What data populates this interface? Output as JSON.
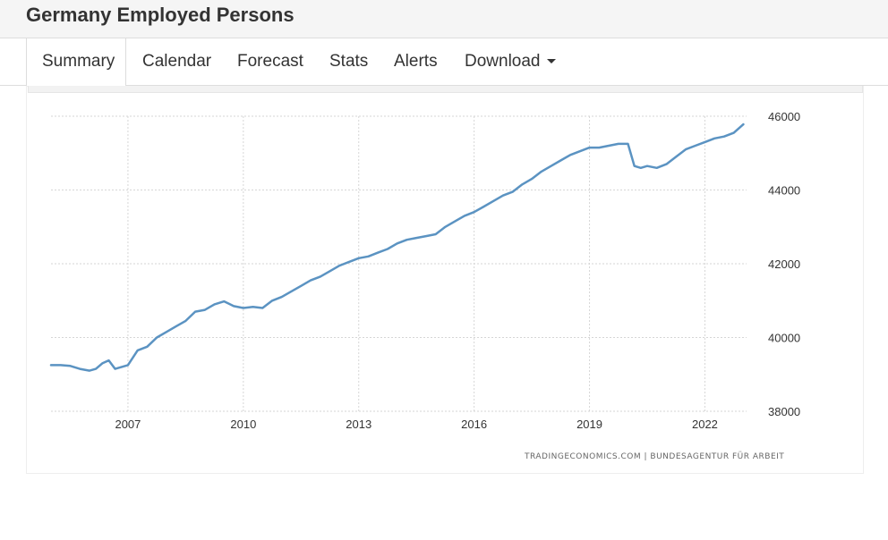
{
  "page": {
    "title": "Germany Employed Persons"
  },
  "tabs": [
    {
      "label": "Summary",
      "active": true
    },
    {
      "label": "Calendar"
    },
    {
      "label": "Forecast"
    },
    {
      "label": "Stats"
    },
    {
      "label": "Alerts"
    },
    {
      "label": "Download",
      "has_dropdown": true,
      "icon": "caret-down-icon"
    }
  ],
  "source": {
    "site": "TRADINGECONOMICS.COM",
    "separator": "|",
    "agency": "BUNDESAGENTUR FÜR ARBEIT"
  },
  "chart_data": {
    "type": "line",
    "title": "",
    "xlabel": "",
    "ylabel": "",
    "series_color": "#5b93c2",
    "grid": true,
    "y_axis_side": "right",
    "ylim": [
      38000,
      46000
    ],
    "xlim": [
      "2005-01",
      "2023-02"
    ],
    "yticks": [
      38000,
      40000,
      42000,
      44000,
      46000
    ],
    "xticks": [
      "2007",
      "2010",
      "2013",
      "2016",
      "2019",
      "2022"
    ],
    "series": [
      {
        "x": [
          "2005-01",
          "2005-04",
          "2005-07",
          "2005-10",
          "2006-01",
          "2006-03",
          "2006-05",
          "2006-07",
          "2006-09",
          "2007-01",
          "2007-04",
          "2007-07",
          "2007-10",
          "2008-01",
          "2008-04",
          "2008-07",
          "2008-10",
          "2009-01",
          "2009-04",
          "2009-07",
          "2009-10",
          "2010-01",
          "2010-04",
          "2010-07",
          "2010-10",
          "2011-01",
          "2011-04",
          "2011-07",
          "2011-10",
          "2012-01",
          "2012-04",
          "2012-07",
          "2012-10",
          "2013-01",
          "2013-04",
          "2013-07",
          "2013-10",
          "2014-01",
          "2014-04",
          "2014-07",
          "2014-10",
          "2015-01",
          "2015-04",
          "2015-07",
          "2015-10",
          "2016-01",
          "2016-04",
          "2016-07",
          "2016-10",
          "2017-01",
          "2017-04",
          "2017-07",
          "2017-10",
          "2018-01",
          "2018-04",
          "2018-07",
          "2018-10",
          "2019-01",
          "2019-04",
          "2019-07",
          "2019-10",
          "2020-01",
          "2020-03",
          "2020-05",
          "2020-07",
          "2020-10",
          "2021-01",
          "2021-04",
          "2021-07",
          "2021-10",
          "2022-01",
          "2022-04",
          "2022-07",
          "2022-10",
          "2023-01"
        ],
        "values": [
          39250,
          39250,
          39230,
          39150,
          39100,
          39150,
          39300,
          39380,
          39150,
          39250,
          39650,
          39750,
          40000,
          40150,
          40300,
          40450,
          40700,
          40750,
          40900,
          40980,
          40850,
          40800,
          40830,
          40800,
          41000,
          41100,
          41250,
          41400,
          41550,
          41650,
          41800,
          41950,
          42050,
          42150,
          42200,
          42300,
          42400,
          42550,
          42650,
          42700,
          42750,
          42800,
          43000,
          43150,
          43300,
          43400,
          43550,
          43700,
          43850,
          43950,
          44150,
          44300,
          44500,
          44650,
          44800,
          44950,
          45050,
          45150,
          45150,
          45200,
          45250,
          45250,
          44650,
          44600,
          44650,
          44600,
          44700,
          44900,
          45100,
          45200,
          45300,
          45400,
          45450,
          45550,
          45780
        ]
      }
    ]
  }
}
